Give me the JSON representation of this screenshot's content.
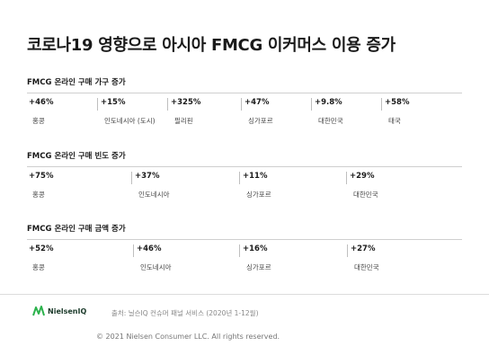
{
  "title": "코로나19 영향으로 아시아 FMCG 이커머스 이용 증가",
  "sections": [
    {
      "title": "FMCG 온라인 구매 가구 증가",
      "items": [
        {
          "value": "+46%",
          "label": "홍콩"
        },
        {
          "value": "+15%",
          "label": "인도네시아 (도시)"
        },
        {
          "value": "+325%",
          "label": "필리핀"
        },
        {
          "value": "+47%",
          "label": "싱가포르"
        },
        {
          "value": "+9.8%",
          "label": "대한민국"
        },
        {
          "value": "+58%",
          "label": "태국"
        }
      ]
    },
    {
      "title": "FMCG 온라인 구매 빈도 증가",
      "items": [
        {
          "value": "+75%",
          "label": "홍콩"
        },
        {
          "value": "+37%",
          "label": "인도네시아"
        },
        {
          "value": "+11%",
          "label": "싱가포르"
        },
        {
          "value": "+29%",
          "label": "대한민국"
        }
      ]
    },
    {
      "title": "FMCG 온라인 구매 금액 증가",
      "items": [
        {
          "value": "+52%",
          "label": "홍콩"
        },
        {
          "value": "+46%",
          "label": "인도네시아"
        },
        {
          "value": "+16%",
          "label": "싱가포르"
        },
        {
          "value": "+27%",
          "label": "대한민국"
        }
      ]
    }
  ],
  "footer": {
    "logo_text": "NielsenIQ",
    "logo_icon": "nielseniq-logo-icon",
    "source": "출처: 닐슨IQ 컨슈머 패널 서비스 (2020년 1-12월)",
    "copyright": "© 2021 Nielsen Consumer LLC. All rights reserved."
  },
  "colors": {
    "logo_green": "#2bb24c",
    "logo_dark": "#1b3a2a"
  }
}
